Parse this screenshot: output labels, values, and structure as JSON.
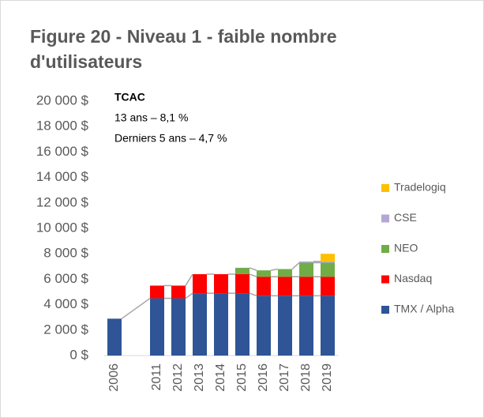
{
  "chart_data": {
    "type": "stacked_bar",
    "title_lines": [
      "Figure 20 - Niveau 1 - faible nombre",
      "d'utilisateurs"
    ],
    "annotation_lines": [
      "TCAC",
      "13 ans – 8,1 %",
      "Derniers 5 ans – 4,7 %"
    ],
    "categories": [
      "2006",
      null,
      "2011",
      "2012",
      "2013",
      "2014",
      "2015",
      "2016",
      "2017",
      "2018",
      "2019"
    ],
    "series": [
      {
        "name": "TMX / Alpha",
        "color": "#2f5597",
        "values": [
          2900,
          null,
          4500,
          4500,
          4900,
          4900,
          4900,
          4700,
          4700,
          4700,
          4700
        ]
      },
      {
        "name": "Nasdaq",
        "color": "#ff0000",
        "values": [
          null,
          null,
          1000,
          1000,
          1500,
          1500,
          1500,
          1500,
          1500,
          1500,
          1500
        ]
      },
      {
        "name": "NEO",
        "color": "#70ad47",
        "values": [
          null,
          null,
          null,
          null,
          null,
          null,
          500,
          500,
          600,
          1100,
          1100
        ]
      },
      {
        "name": "CSE",
        "color": "#b4a7d6",
        "values": [
          null,
          null,
          null,
          null,
          null,
          null,
          null,
          null,
          null,
          100,
          100
        ]
      },
      {
        "name": "Tradelogiq",
        "color": "#ffc000",
        "values": [
          null,
          null,
          null,
          null,
          null,
          null,
          null,
          null,
          null,
          null,
          600
        ]
      }
    ],
    "ylim": [
      0,
      20000
    ],
    "yticks": [
      {
        "value": 0,
        "label": "0 $"
      },
      {
        "value": 2000,
        "label": "2 000 $"
      },
      {
        "value": 4000,
        "label": "4 000 $"
      },
      {
        "value": 6000,
        "label": "6 000 $"
      },
      {
        "value": 8000,
        "label": "8 000 $"
      },
      {
        "value": 10000,
        "label": "10 000 $"
      },
      {
        "value": 12000,
        "label": "12 000 $"
      },
      {
        "value": 14000,
        "label": "14 000 $"
      },
      {
        "value": 16000,
        "label": "16 000 $"
      },
      {
        "value": 18000,
        "label": "18 000 $"
      },
      {
        "value": 20000,
        "label": "20 000 $"
      }
    ],
    "legend": "right"
  }
}
